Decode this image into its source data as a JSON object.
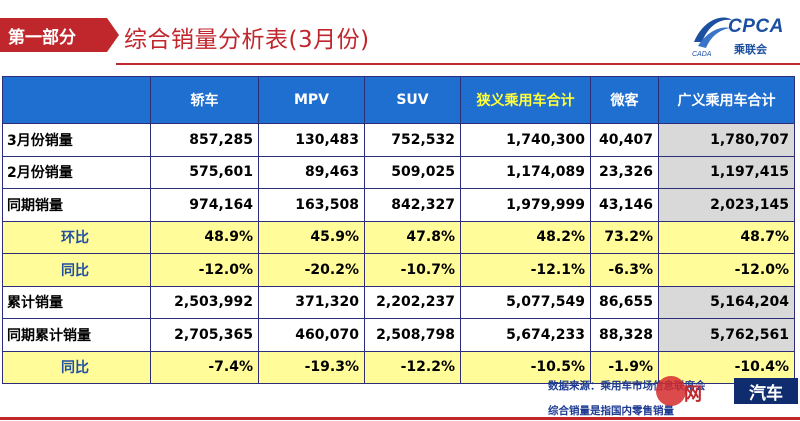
{
  "header": {
    "section_label": "第一部分",
    "title": "综合销量分析表(3月份)"
  },
  "logo": {
    "name": "CPCA",
    "subtitle": "乘联会",
    "mark_text": "CADA"
  },
  "table": {
    "columns": [
      "",
      "轿车",
      "MPV",
      "SUV",
      "狭义乘用车合计",
      "微客",
      "广义乘用车合计"
    ],
    "rows": [
      {
        "label": "3月份销量",
        "values": [
          "857,285",
          "130,483",
          "752,532",
          "1,740,300",
          "40,407",
          "1,780,707"
        ]
      },
      {
        "label": "2月份销量",
        "values": [
          "575,601",
          "89,463",
          "509,025",
          "1,174,089",
          "23,326",
          "1,197,415"
        ]
      },
      {
        "label": "同期销量",
        "values": [
          "974,164",
          "163,508",
          "842,327",
          "1,979,999",
          "43,146",
          "2,023,145"
        ]
      },
      {
        "label": "环比",
        "values": [
          "48.9%",
          "45.9%",
          "47.8%",
          "48.2%",
          "73.2%",
          "48.7%"
        ]
      },
      {
        "label": "同比",
        "values": [
          "-12.0%",
          "-20.2%",
          "-10.7%",
          "-12.1%",
          "-6.3%",
          "-12.0%"
        ]
      },
      {
        "label": "累计销量",
        "values": [
          "2,503,992",
          "371,320",
          "2,202,237",
          "5,077,549",
          "86,655",
          "5,164,204"
        ]
      },
      {
        "label": "同期累计销量",
        "values": [
          "2,705,365",
          "460,070",
          "2,508,798",
          "5,674,233",
          "88,328",
          "5,762,561"
        ]
      },
      {
        "label": "同比",
        "values": [
          "-7.4%",
          "-19.3%",
          "-12.2%",
          "-10.5%",
          "-1.9%",
          "-10.4%"
        ]
      }
    ]
  },
  "notes": {
    "source": "数据来源：乘用车市场信息联席会",
    "scope": "综合销量是指国内零售销量"
  },
  "watermark": {
    "text": "网",
    "box_text": "汽车"
  },
  "colors": {
    "accent_red": "#c0272d",
    "header_blue": "#1f6fd1",
    "ratio_yellow": "#fffc99",
    "total_gray": "#d9d9d9"
  }
}
